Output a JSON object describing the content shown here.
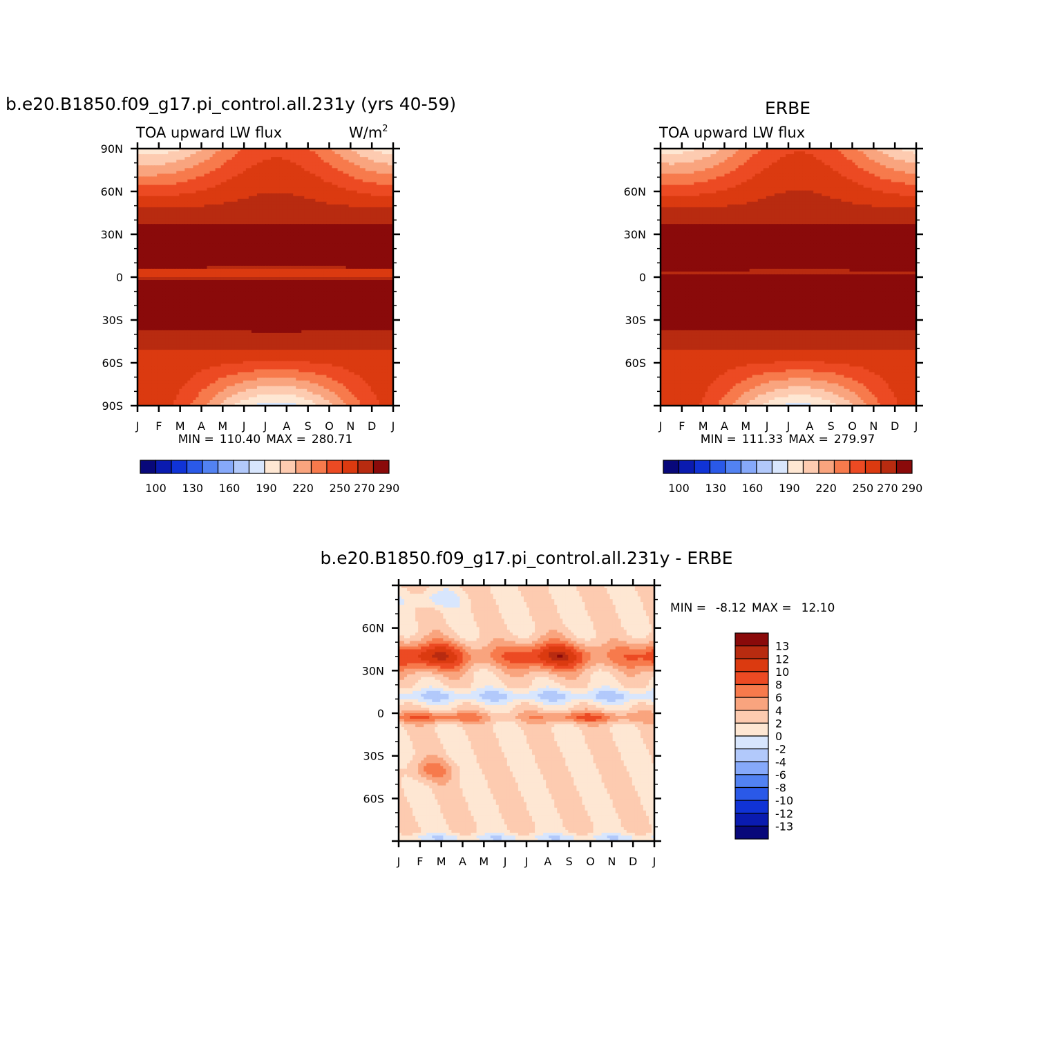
{
  "chart_data": [
    {
      "type": "heatmap",
      "id": "model",
      "title": "b.e20.B1850.f09_g17.pi_control.all.231y (yrs 40-59)",
      "subtitle": "TOA upward LW flux",
      "units": "W/m",
      "units_sup": "2",
      "x": [
        "J",
        "F",
        "M",
        "A",
        "M",
        "J",
        "J",
        "A",
        "S",
        "O",
        "N",
        "D",
        "J"
      ],
      "y_ticks": [
        "90N",
        "60N",
        "30N",
        "0",
        "30S",
        "60S",
        "90S"
      ],
      "y_range": [
        -90,
        90
      ],
      "min_label": "MIN =",
      "min_value": "110.40",
      "max_label": "MAX =",
      "max_value": "280.71",
      "levels": [
        100,
        110,
        120,
        130,
        140,
        150,
        160,
        170,
        180,
        190,
        200,
        210,
        220,
        230,
        240,
        250,
        260,
        270,
        280,
        290
      ],
      "colorbar_labels": [
        "100",
        "130",
        "160",
        "190",
        "220",
        "250",
        "270",
        "290"
      ],
      "field": "lw_mean",
      "min": 110.4,
      "max": 280.71,
      "grid": false
    },
    {
      "type": "heatmap",
      "id": "obs",
      "title": "ERBE",
      "subtitle": "TOA upward LW flux",
      "x": [
        "J",
        "F",
        "M",
        "A",
        "M",
        "J",
        "J",
        "A",
        "S",
        "O",
        "N",
        "D",
        "J"
      ],
      "y_ticks": [
        "60N",
        "30N",
        "0",
        "30S",
        "60S"
      ],
      "y_range": [
        -90,
        90
      ],
      "min_label": "MIN =",
      "min_value": "111.33",
      "max_label": "MAX =",
      "max_value": "279.97",
      "levels": [
        100,
        110,
        120,
        130,
        140,
        150,
        160,
        170,
        180,
        190,
        200,
        210,
        220,
        230,
        240,
        250,
        260,
        270,
        280,
        290
      ],
      "colorbar_labels": [
        "100",
        "130",
        "160",
        "190",
        "220",
        "250",
        "270",
        "290"
      ],
      "field": "lw_obs",
      "min": 111.33,
      "max": 279.97,
      "grid": false
    },
    {
      "type": "heatmap",
      "id": "diff",
      "title": "b.e20.B1850.f09_g17.pi_control.all.231y - ERBE",
      "x": [
        "J",
        "F",
        "M",
        "A",
        "M",
        "J",
        "J",
        "A",
        "S",
        "O",
        "N",
        "D",
        "J"
      ],
      "y_ticks": [
        "60N",
        "30N",
        "0",
        "30S",
        "60S"
      ],
      "y_range": [
        -90,
        90
      ],
      "min_label": "MIN =",
      "min_value": "-8.12",
      "max_label": "MAX =",
      "max_value": "12.10",
      "levels": [
        -13,
        -12,
        -10,
        -8,
        -6,
        -4,
        -2,
        0,
        2,
        4,
        6,
        8,
        10,
        12,
        13
      ],
      "colorbar_labels": [
        "13",
        "12",
        "10",
        "8",
        "6",
        "4",
        "2",
        "0",
        "-2",
        "-4",
        "-6",
        "-8",
        "-10",
        "-12",
        "-13"
      ],
      "field": "lw_diff",
      "min": -8.12,
      "max": 12.1,
      "grid": false
    }
  ],
  "colors": {
    "lw_palette": [
      "#08087a",
      "#0a1bb0",
      "#1033d6",
      "#2a59e8",
      "#5282f2",
      "#86a9fa",
      "#b2c9fb",
      "#d8e6fd",
      "#fee7d3",
      "#fdcbb0",
      "#f9a47e",
      "#f77a4c",
      "#ec4a23",
      "#db3a10",
      "#b82b10",
      "#8a0a0a"
    ],
    "diff_palette": [
      "#08087a",
      "#0a1bb0",
      "#1033d6",
      "#2a59e8",
      "#5282f2",
      "#86a9fa",
      "#b2c9fb",
      "#d8e6fd",
      "#fee7d3",
      "#fdcbb0",
      "#f9a47e",
      "#f77a4c",
      "#ec4a23",
      "#db3a10",
      "#b82b10",
      "#8a0a0a"
    ]
  }
}
